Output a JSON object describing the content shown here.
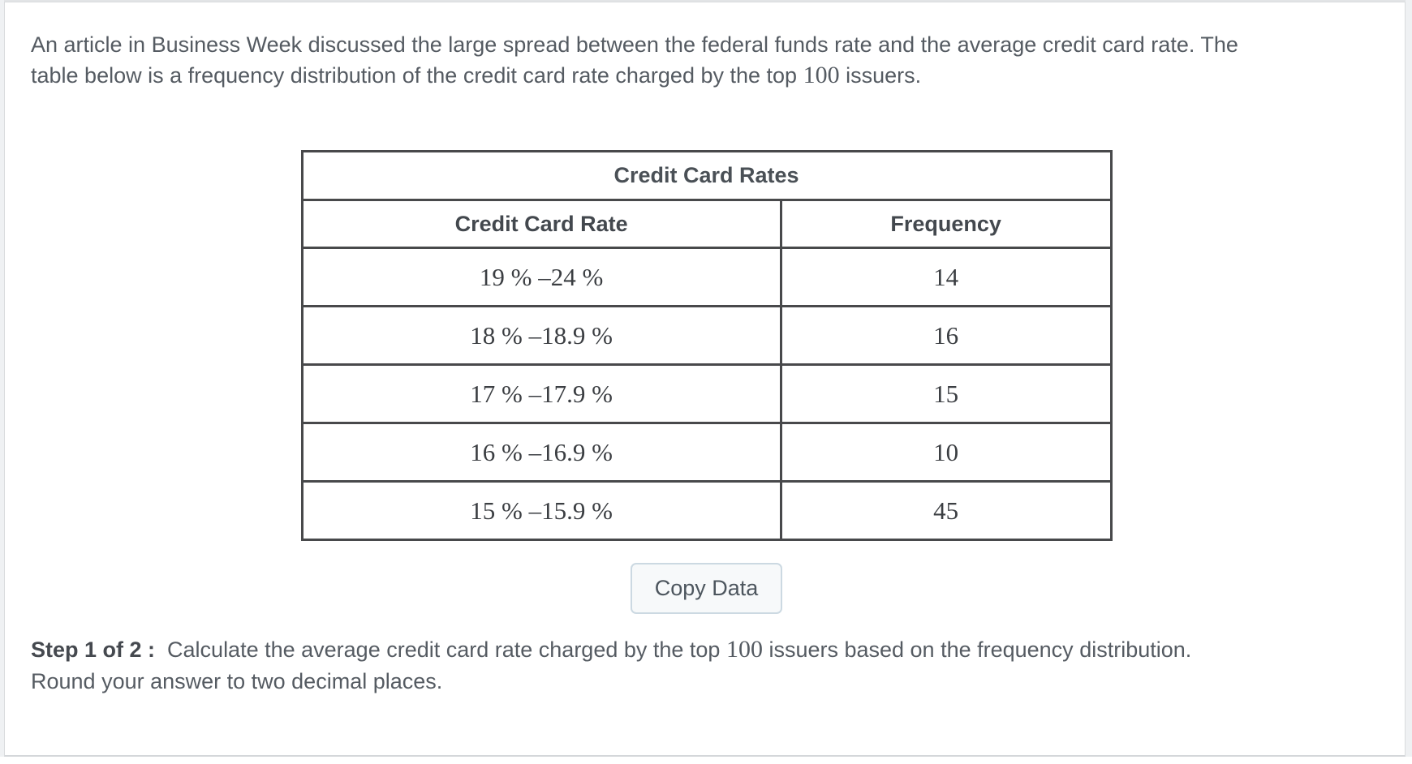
{
  "intro": {
    "line1": "An article in Business Week discussed the large spread between the federal funds rate and the average credit card rate. The",
    "line2_before": "table below is a frequency distribution of the credit card rate charged by the top ",
    "line2_math": "100",
    "line2_after": " issuers."
  },
  "table": {
    "title": "Credit Card Rates",
    "columns": [
      "Credit Card Rate",
      "Frequency"
    ],
    "rows": [
      {
        "rate": "19 % –24 %",
        "frequency": "14"
      },
      {
        "rate": "18 % –18.9 %",
        "frequency": "16"
      },
      {
        "rate": "17 % –17.9 %",
        "frequency": "15"
      },
      {
        "rate": "16 % –16.9 %",
        "frequency": "10"
      },
      {
        "rate": "15 % –15.9 %",
        "frequency": "45"
      }
    ]
  },
  "actions": {
    "copy_data_label": "Copy Data"
  },
  "step": {
    "label": "Step 1 of 2 :",
    "line1_before": "  Calculate the average credit card rate charged by the top ",
    "line1_math": "100",
    "line1_after": " issuers based on the frequency distribution.",
    "line2": "Round your answer to two decimal places."
  },
  "colors": {
    "body_text": "#555b62",
    "table_border": "#48494b",
    "table_value_text": "#3b3e42",
    "panel_border": "#d9dbde",
    "page_gutter": "#eff1f3",
    "button_background": "#f7f9fa",
    "button_border": "#ccd9e2",
    "button_text": "#4d565e"
  }
}
